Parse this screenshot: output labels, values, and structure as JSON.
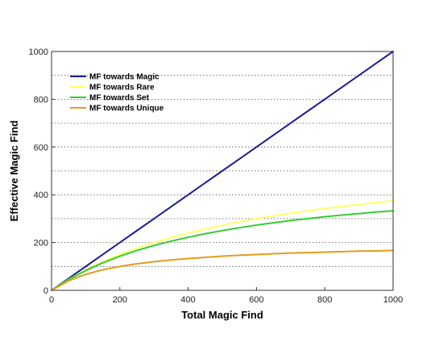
{
  "chart_data": {
    "type": "line",
    "xlabel": "Total Magic Find",
    "ylabel": "Effective Magic Find",
    "xlim": [
      0,
      1000
    ],
    "ylim": [
      0,
      1000
    ],
    "x_ticks": [
      0,
      200,
      400,
      600,
      800,
      1000
    ],
    "y_ticks": [
      0,
      200,
      400,
      600,
      800,
      1000
    ],
    "y_gridlines": [
      100,
      200,
      300,
      400,
      500,
      600,
      700,
      800,
      900
    ],
    "grid": "horizontal dotted",
    "legend_position": "top-left",
    "x": [
      0,
      50,
      100,
      150,
      200,
      250,
      300,
      350,
      400,
      450,
      500,
      550,
      600,
      650,
      700,
      750,
      800,
      850,
      900,
      950,
      1000
    ],
    "series": [
      {
        "name": "MF towards Magic",
        "color": "#1c1c96",
        "values": [
          0,
          50,
          100,
          150,
          200,
          250,
          300,
          350,
          400,
          450,
          500,
          550,
          600,
          650,
          700,
          750,
          800,
          850,
          900,
          950,
          1000
        ]
      },
      {
        "name": "MF towards Rare",
        "color": "#ffff66",
        "values": [
          0,
          46,
          86,
          120,
          150,
          176,
          200,
          221,
          240,
          257,
          273,
          287,
          300,
          312,
          323,
          333,
          343,
          351,
          360,
          367,
          375
        ]
      },
      {
        "name": "MF towards Set",
        "color": "#33cc33",
        "values": [
          0,
          45,
          83,
          115,
          143,
          167,
          188,
          206,
          222,
          237,
          250,
          262,
          273,
          283,
          292,
          300,
          308,
          315,
          321,
          328,
          333
        ]
      },
      {
        "name": "MF towards Unique",
        "color": "#e39b1e",
        "values": [
          0,
          40,
          67,
          86,
          100,
          111,
          120,
          127,
          133,
          138,
          143,
          147,
          150,
          153,
          156,
          158,
          160,
          162,
          164,
          165,
          167
        ]
      }
    ]
  }
}
